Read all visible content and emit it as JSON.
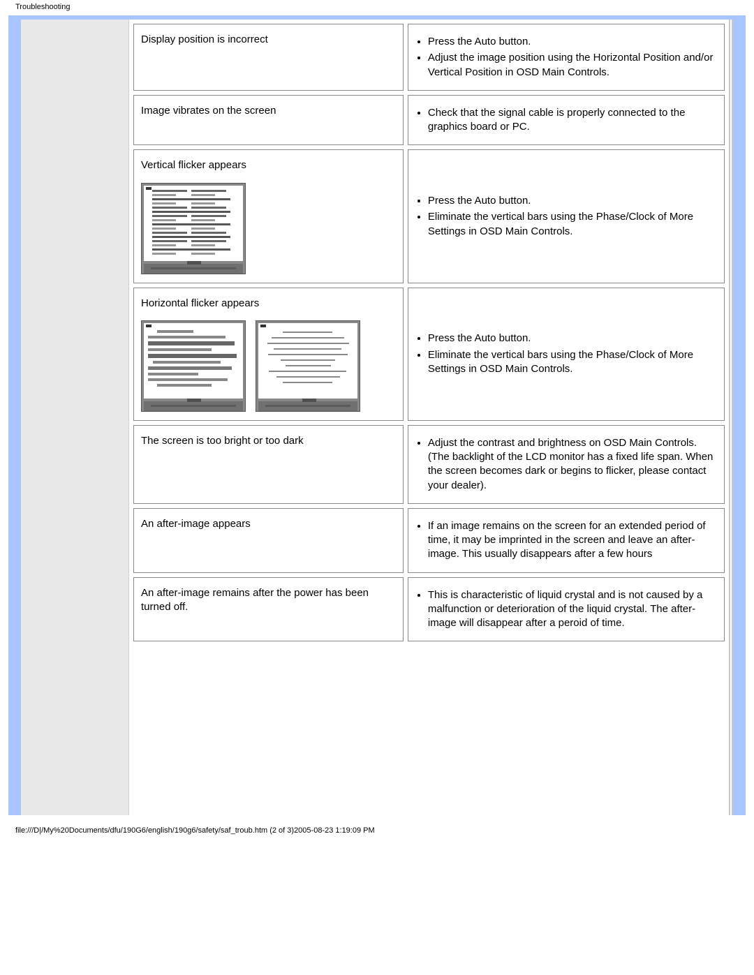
{
  "page": {
    "title": "Troubleshooting",
    "footer": "file:///D|/My%20Documents/dfu/190G6/english/190g6/safety/saf_troub.htm (2 of 3)2005-08-23 1:19:09 PM"
  },
  "rows": [
    {
      "problem": "Display position is incorrect",
      "solutions": [
        "Press the Auto button.",
        "Adjust the image position using the Horizontal Position and/or Vertical Position in OSD Main Controls."
      ]
    },
    {
      "problem": "Image vibrates on the screen",
      "solutions": [
        "Check that the signal cable is properly connected to the graphics board or PC."
      ]
    },
    {
      "problem": "Vertical flicker appears",
      "illustration": "vertical",
      "solutions": [
        "Press the Auto button.",
        "Eliminate the vertical bars using the Phase/Clock of More Settings in OSD Main Controls."
      ]
    },
    {
      "problem": "Horizontal flicker appears",
      "illustration": "horizontal",
      "solutions": [
        "Press the Auto button.",
        "Eliminate the vertical bars using the Phase/Clock of More Settings in OSD Main Controls."
      ]
    },
    {
      "problem": "The screen is too bright or too dark",
      "solutions": [
        "Adjust the contrast and brightness on OSD Main Controls. (The backlight of the LCD monitor has a fixed life span. When the screen becomes dark or begins to flicker, please contact your dealer)."
      ]
    },
    {
      "problem": "An after-image appears",
      "solutions": [
        "If an image remains on the screen for an extended period of time, it may be imprinted in the screen and leave an after-image. This usually disappears after a few hours"
      ]
    },
    {
      "problem": "An after-image remains after the power has been turned off.",
      "solutions": [
        "This is characteristic of liquid crystal and is not caused by a malfunction or deterioration of the liquid crystal. The after-image will disappear after a peroid of time."
      ]
    }
  ],
  "colors": {
    "frame": "#a8c5ff",
    "sidebar": "#e8e8e8",
    "cell_border": "#888888"
  }
}
